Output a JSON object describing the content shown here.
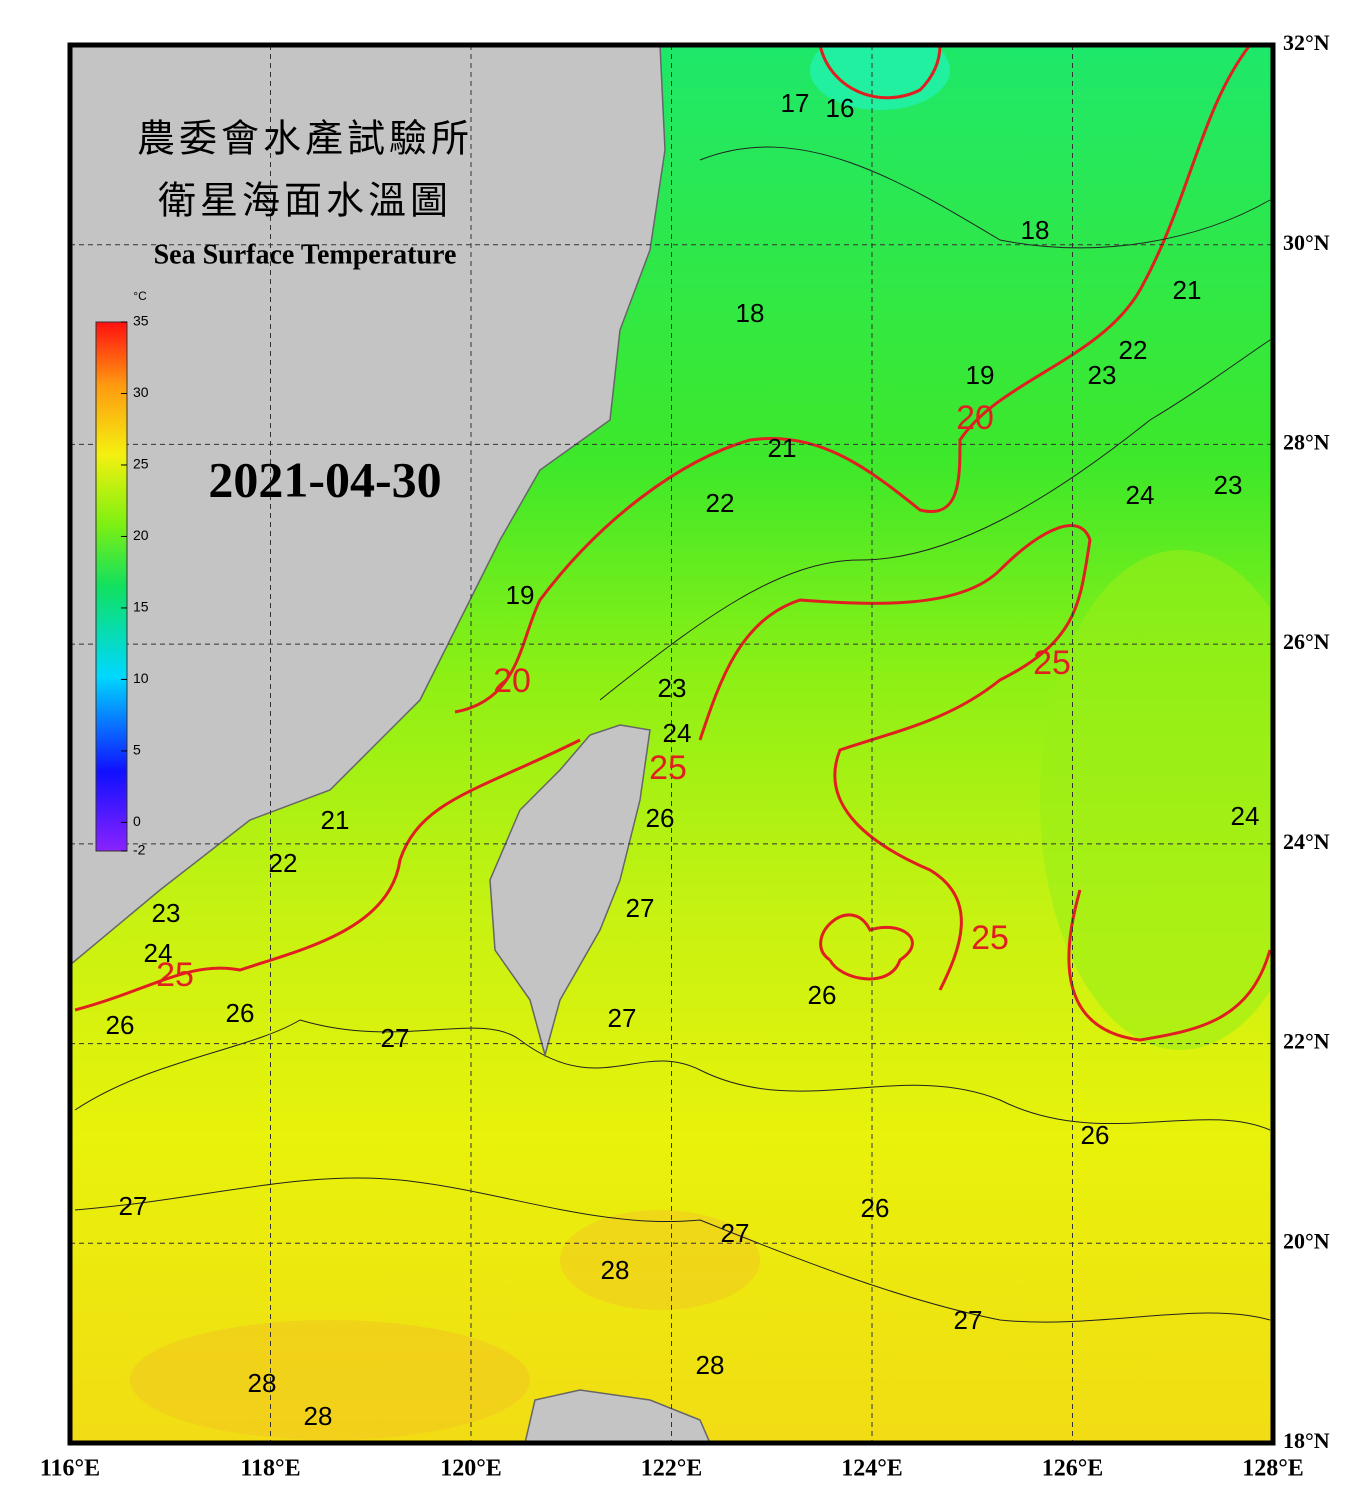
{
  "header": {
    "title_line1": "農委會水產試驗所",
    "title_line2": "衛星海面水溫圖",
    "subtitle": "Sea Surface Temperature"
  },
  "date": "2021-04-30",
  "colorbar": {
    "unit": "°C",
    "range": [
      -2,
      35
    ],
    "ticks": [
      35,
      30,
      25,
      20,
      15,
      10,
      5,
      0,
      -2
    ]
  },
  "map": {
    "xlim": [
      116,
      128
    ],
    "ylim": [
      18,
      32
    ],
    "longitudes": [
      {
        "value": 116,
        "label": "116°E"
      },
      {
        "value": 118,
        "label": "118°E"
      },
      {
        "value": 120,
        "label": "120°E"
      },
      {
        "value": 122,
        "label": "122°E"
      },
      {
        "value": 124,
        "label": "124°E"
      },
      {
        "value": 126,
        "label": "126°E"
      },
      {
        "value": 128,
        "label": "128°E"
      }
    ],
    "latitudes": [
      {
        "value": 32,
        "label": "32°N"
      },
      {
        "value": 30,
        "label": "30°N"
      },
      {
        "value": 28,
        "label": "28°N"
      },
      {
        "value": 26,
        "label": "26°N"
      },
      {
        "value": 24,
        "label": "24°N"
      },
      {
        "value": 22,
        "label": "22°N"
      },
      {
        "value": 20,
        "label": "20°N"
      },
      {
        "value": 18,
        "label": "18°N"
      }
    ],
    "contour_labels": [
      "17",
      "16",
      "18",
      "18",
      "21",
      "19",
      "23",
      "22",
      "20",
      "21",
      "22",
      "24",
      "23",
      "19",
      "25",
      "20",
      "23",
      "24",
      "25",
      "26",
      "21",
      "24",
      "22",
      "27",
      "23",
      "25",
      "24",
      "25",
      "26",
      "26",
      "26",
      "27",
      "27",
      "26",
      "27",
      "26",
      "27",
      "28",
      "27",
      "28",
      "28",
      "28"
    ]
  }
}
